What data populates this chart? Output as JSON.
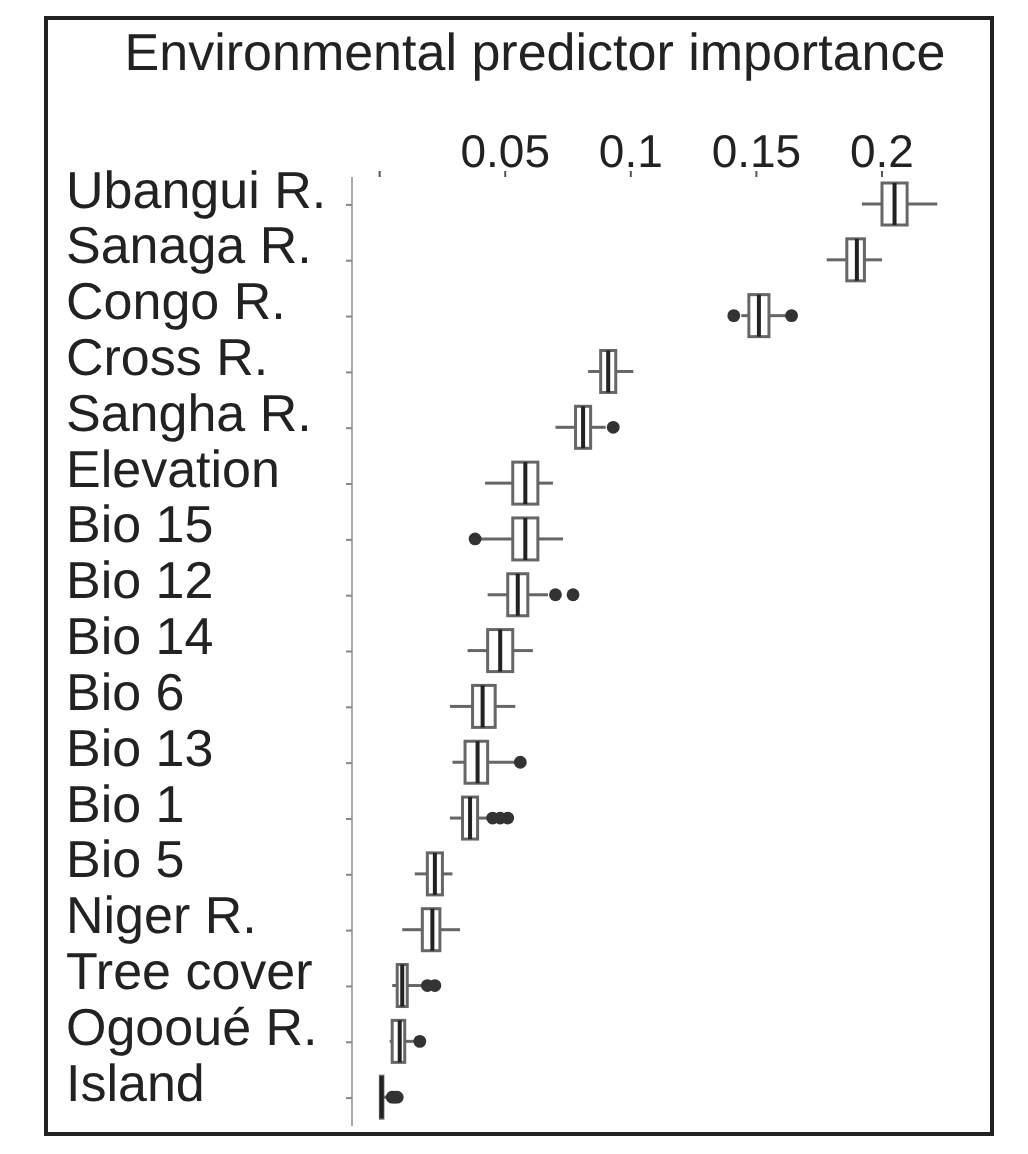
{
  "chart_data": {
    "type": "box",
    "title": "Environmental predictor importance",
    "orientation": "horizontal",
    "color": "#666666",
    "categories": [
      "Ubangui R.",
      "Sanaga R.",
      "Congo R.",
      "Cross R.",
      "Sangha R.",
      "Elevation",
      "Bio 15",
      "Bio 12",
      "Bio 14",
      "Bio 6",
      "Bio 13",
      "Bio 1",
      "Bio 5",
      "Niger R.",
      "Tree cover",
      "Ogooué R.",
      "Island"
    ],
    "boxes": [
      {
        "low": 0.192,
        "q1": 0.2,
        "median": 0.205,
        "q3": 0.21,
        "high": 0.222
      },
      {
        "low": 0.178,
        "q1": 0.186,
        "median": 0.19,
        "q3": 0.193,
        "high": 0.2
      },
      {
        "low": 0.144,
        "q1": 0.147,
        "median": 0.151,
        "q3": 0.155,
        "high": 0.162,
        "outliers": [
          0.141,
          0.164
        ]
      },
      {
        "low": 0.083,
        "q1": 0.088,
        "median": 0.091,
        "q3": 0.094,
        "high": 0.101
      },
      {
        "low": 0.07,
        "q1": 0.078,
        "median": 0.081,
        "q3": 0.084,
        "high": 0.09,
        "outliers": [
          0.093
        ]
      },
      {
        "low": 0.042,
        "q1": 0.053,
        "median": 0.058,
        "q3": 0.063,
        "high": 0.069
      },
      {
        "low": 0.04,
        "q1": 0.053,
        "median": 0.058,
        "q3": 0.063,
        "high": 0.073,
        "outliers": [
          0.038
        ]
      },
      {
        "low": 0.043,
        "q1": 0.051,
        "median": 0.055,
        "q3": 0.059,
        "high": 0.067,
        "outliers": [
          0.07,
          0.077
        ]
      },
      {
        "low": 0.035,
        "q1": 0.043,
        "median": 0.048,
        "q3": 0.053,
        "high": 0.061
      },
      {
        "low": 0.028,
        "q1": 0.037,
        "median": 0.041,
        "q3": 0.046,
        "high": 0.054
      },
      {
        "low": 0.029,
        "q1": 0.034,
        "median": 0.039,
        "q3": 0.043,
        "high": 0.054,
        "outliers": [
          0.056
        ]
      },
      {
        "low": 0.028,
        "q1": 0.033,
        "median": 0.036,
        "q3": 0.039,
        "high": 0.043,
        "outliers": [
          0.045,
          0.048,
          0.051
        ]
      },
      {
        "low": 0.014,
        "q1": 0.019,
        "median": 0.022,
        "q3": 0.025,
        "high": 0.029
      },
      {
        "low": 0.009,
        "q1": 0.017,
        "median": 0.021,
        "q3": 0.024,
        "high": 0.032
      },
      {
        "low": 0.005,
        "q1": 0.007,
        "median": 0.009,
        "q3": 0.011,
        "high": 0.017,
        "outliers": [
          0.019,
          0.022
        ]
      },
      {
        "low": 0.004,
        "q1": 0.005,
        "median": 0.008,
        "q3": 0.01,
        "high": 0.014,
        "outliers": [
          0.016
        ]
      },
      {
        "low": 0,
        "q1": 0.0003,
        "median": 0.0008,
        "q3": 0.0013,
        "high": 0.004,
        "outliers": [
          0.005,
          0.006,
          0.007
        ]
      }
    ],
    "xlim": [
      -0.011,
      0.243
    ],
    "xticks": [
      {
        "value": 0,
        "label": null
      },
      0.05,
      0.1,
      0.15,
      0.2
    ]
  }
}
